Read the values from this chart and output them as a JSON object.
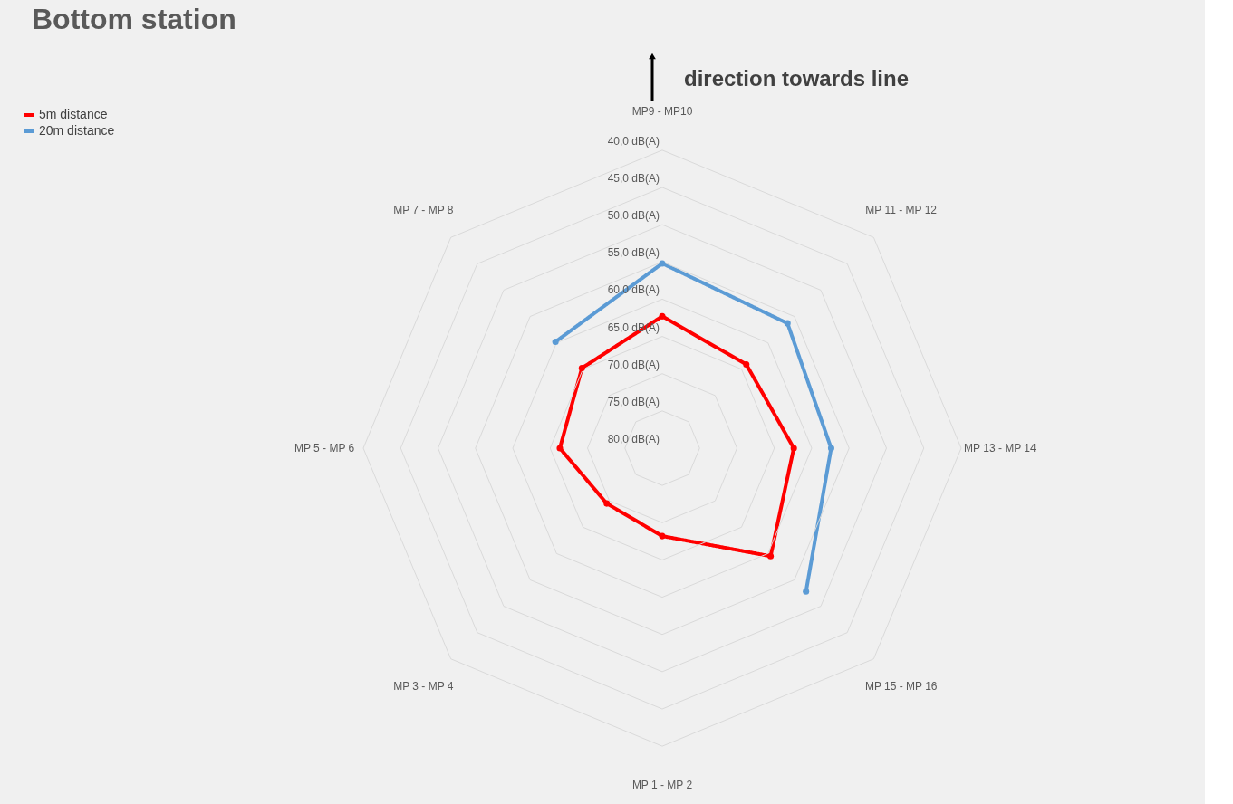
{
  "chart_data": {
    "type": "radar",
    "title": "Bottom station",
    "annotations": [
      "direction towards line"
    ],
    "categories": [
      "MP9 - MP10",
      "MP 11 - MP 12",
      "MP 13 - MP 14",
      "MP 15 - MP 16",
      "MP 1 - MP 2",
      "MP 3 - MP 4",
      "MP 5 - MP 6",
      "MP 7 - MP 8"
    ],
    "series": [
      {
        "name": "5m distance",
        "color": "#ff0000",
        "values": [
          62.3,
          64.1,
          62.4,
          59.5,
          68.2,
          69.5,
          66.3,
          64.8
        ]
      },
      {
        "name": "20m distance",
        "color": "#5b9bd5",
        "values": [
          55.2,
          56.3,
          57.4,
          52.8,
          null,
          null,
          null,
          59.8
        ]
      }
    ],
    "ylim": [
      80,
      40
    ],
    "yticks": [
      {
        "value": 40,
        "label": "40,0 dB(A)"
      },
      {
        "value": 45,
        "label": "45,0 dB(A)"
      },
      {
        "value": 50,
        "label": "50,0 dB(A)"
      },
      {
        "value": 55,
        "label": "55,0 dB(A)"
      },
      {
        "value": 60,
        "label": "60,0 dB(A)"
      },
      {
        "value": 65,
        "label": "65,0 dB(A)"
      },
      {
        "value": 70,
        "label": "70,0 dB(A)"
      },
      {
        "value": 75,
        "label": "75,0 dB(A)"
      },
      {
        "value": 80,
        "label": "80,0 dB(A)"
      }
    ],
    "grid": true,
    "legend": "top left",
    "marker": "circle",
    "line_style": "solid"
  }
}
